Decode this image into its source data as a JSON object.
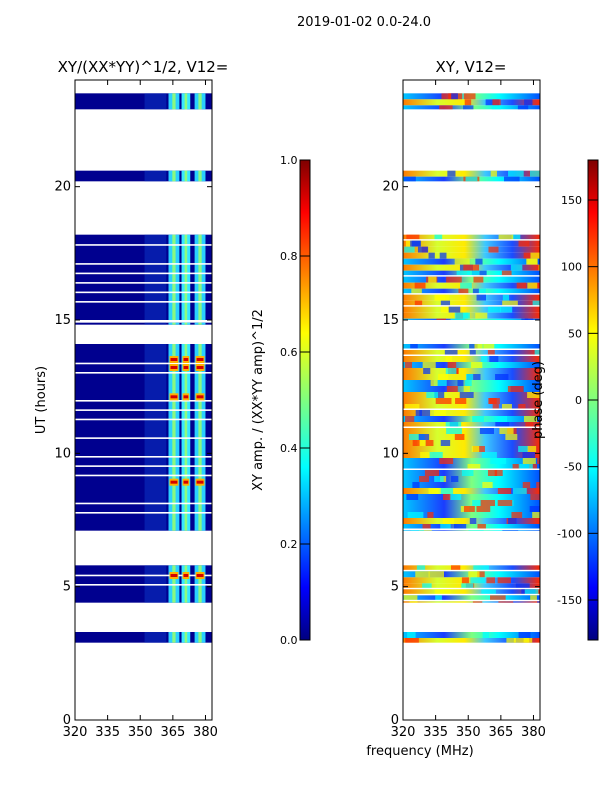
{
  "figure": {
    "suptitle": "2019-01-02 0.0-24.0",
    "xlabel_common": "frequency (MHz)"
  },
  "colors": {
    "nodata": "#ffffff",
    "axis": "#000000",
    "lowband": "#00007f"
  },
  "chart_data": [
    {
      "type": "heatmap",
      "title": "XY/(XX*YY)^1/2, V12=",
      "ylabel": "UT (hours)",
      "xlim": [
        320,
        383
      ],
      "ylim": [
        0,
        24
      ],
      "xticks": [
        "320",
        "335",
        "350",
        "365",
        "380"
      ],
      "xtick_values": [
        320,
        335,
        350,
        365,
        380
      ],
      "yticks": [
        "0",
        "5",
        "10",
        "15",
        "20"
      ],
      "ytick_values": [
        0,
        5,
        10,
        15,
        20
      ],
      "colorbar": {
        "label": "XY amp. / (XX*YY amp)^1/2",
        "range": [
          0,
          1
        ],
        "ticks": [
          "0.0",
          "0.2",
          "0.4",
          "0.6",
          "0.8",
          "1.0"
        ],
        "tick_values": [
          0,
          0.2,
          0.4,
          0.6,
          0.8,
          1.0
        ]
      },
      "data_hour_blocks": [
        [
          22.9,
          23.5
        ],
        [
          20.2,
          20.6
        ],
        [
          15.0,
          18.2
        ],
        [
          14.9,
          14.9
        ],
        [
          7.1,
          14.1
        ],
        [
          4.4,
          5.8
        ],
        [
          2.9,
          3.3
        ]
      ],
      "freq_highlight_bands_mhz": [
        [
          363,
          368
        ],
        [
          369,
          373
        ],
        [
          375,
          380
        ]
      ]
    },
    {
      "type": "heatmap",
      "title": "XY, V12=",
      "xlim": [
        320,
        383
      ],
      "ylim": [
        0,
        24
      ],
      "xticks": [
        "320",
        "335",
        "350",
        "365",
        "380"
      ],
      "xtick_values": [
        320,
        335,
        350,
        365,
        380
      ],
      "yticks": [
        "0",
        "5",
        "10",
        "15",
        "20"
      ],
      "ytick_values": [
        0,
        5,
        10,
        15,
        20
      ],
      "colorbar": {
        "label": "phase (deg)",
        "range": [
          -180,
          180
        ],
        "ticks": [
          "-150",
          "-100",
          "-50",
          "0",
          "50",
          "100",
          "150"
        ],
        "tick_values": [
          -150,
          -100,
          -50,
          0,
          50,
          100,
          150
        ]
      },
      "data_hour_blocks": [
        [
          22.9,
          23.5
        ],
        [
          20.2,
          20.6
        ],
        [
          15.0,
          18.2
        ],
        [
          7.1,
          14.1
        ],
        [
          4.4,
          5.8
        ],
        [
          2.9,
          3.3
        ]
      ]
    }
  ]
}
